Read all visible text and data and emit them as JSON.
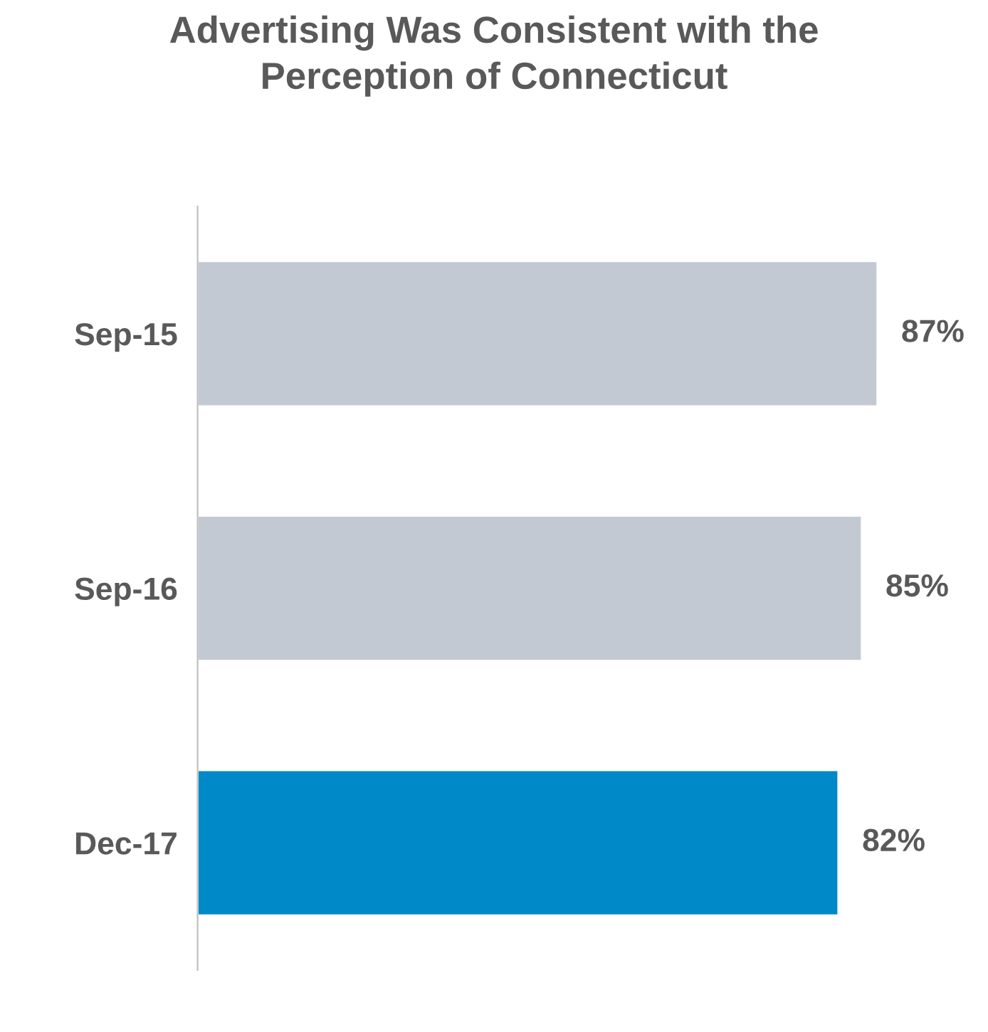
{
  "chart_data": {
    "type": "bar",
    "orientation": "horizontal",
    "title": "Advertising Was Consistent with the\nPerception of Connecticut",
    "categories": [
      "Sep-15",
      "Sep-16",
      "Dec-17"
    ],
    "values": [
      87,
      85,
      82
    ],
    "colors": [
      "#c3c9d2",
      "#c3c9d2",
      "#0089c8"
    ],
    "value_labels": [
      "87%",
      "85%",
      "82%"
    ],
    "grid": false,
    "legend": false
  }
}
